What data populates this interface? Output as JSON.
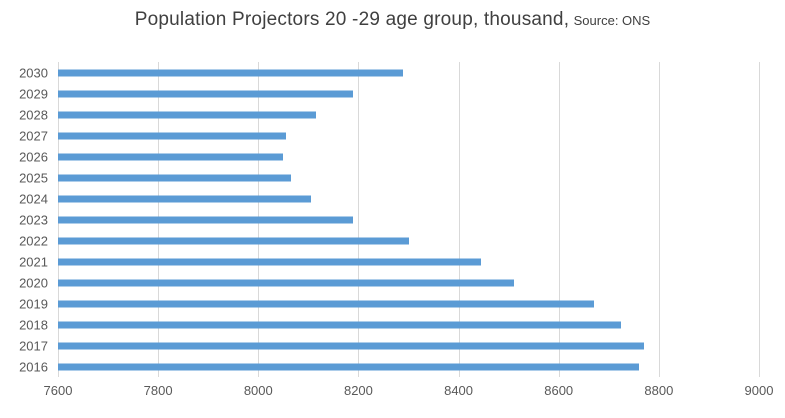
{
  "title": {
    "main": "Population Projectors 20 -29 age group, thousand,",
    "source": "Source: ONS"
  },
  "colors": {
    "bar": "#5B9BD5",
    "gridline": "#D9D9D9",
    "axis_text": "#595959",
    "title_text": "#404040"
  },
  "chart_data": {
    "type": "bar",
    "orientation": "horizontal",
    "title": "Population Projectors 20 -29 age group, thousand, Source: ONS",
    "categories": [
      "2030",
      "2029",
      "2028",
      "2027",
      "2026",
      "2025",
      "2024",
      "2023",
      "2022",
      "2021",
      "2020",
      "2019",
      "2018",
      "2017",
      "2016"
    ],
    "values": [
      8290,
      8190,
      8115,
      8055,
      8050,
      8065,
      8105,
      8190,
      8300,
      8445,
      8510,
      8670,
      8725,
      8770,
      8760
    ],
    "xlabel": "",
    "ylabel": "",
    "xlim": [
      7600,
      9000
    ],
    "xticks": [
      7600,
      7800,
      8000,
      8200,
      8400,
      8600,
      8800,
      9000
    ],
    "grid": true,
    "legend": false
  }
}
